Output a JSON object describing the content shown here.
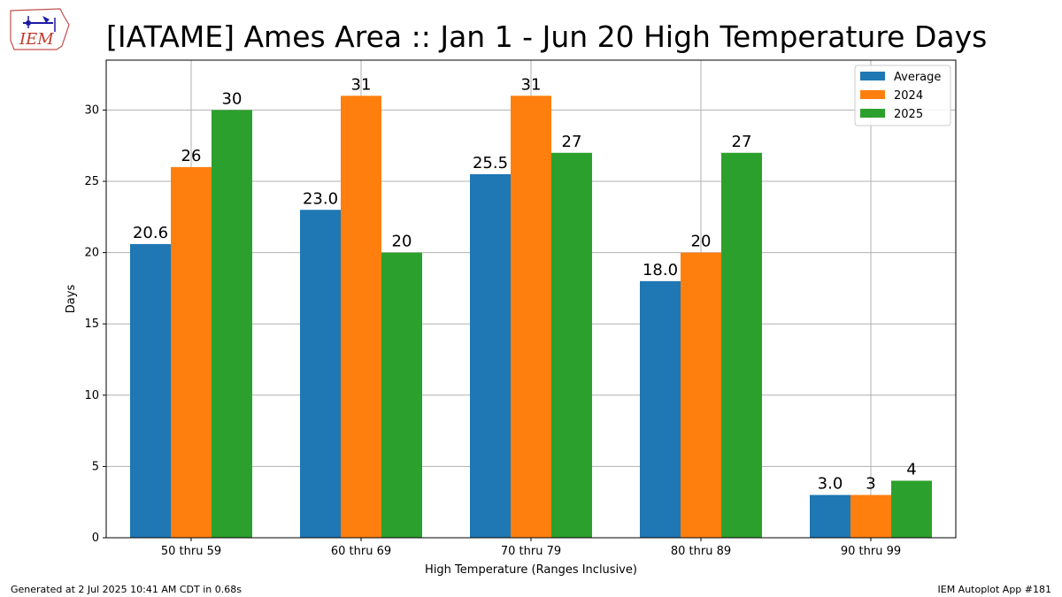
{
  "logo_text": "IEM",
  "title": "[IATAME] Ames Area :: Jan 1 - Jun 20 High Temperature Days",
  "footer": {
    "generated": "Generated at 2 Jul 2025 10:41 AM CDT in 0.68s",
    "app": "IEM Autoplot App #181"
  },
  "chart_data": {
    "type": "bar",
    "title": "[IATAME] Ames Area :: Jan 1 - Jun 20 High Temperature Days",
    "xlabel": "High Temperature (Ranges Inclusive)",
    "ylabel": "Days",
    "ylim": [
      0,
      33.5
    ],
    "yticks": [
      0,
      5,
      10,
      15,
      20,
      25,
      30
    ],
    "grid": true,
    "legend_position": "top-right",
    "categories": [
      "50 thru 59",
      "60 thru 69",
      "70 thru 79",
      "80 thru 89",
      "90 thru 99"
    ],
    "series": [
      {
        "name": "Average",
        "color": "#1f77b4",
        "values": [
          20.6,
          23.0,
          25.5,
          18.0,
          3.0
        ],
        "labels": [
          "20.6",
          "23.0",
          "25.5",
          "18.0",
          "3.0"
        ]
      },
      {
        "name": "2024",
        "color": "#ff7f0e",
        "values": [
          26,
          31,
          31,
          20,
          3
        ],
        "labels": [
          "26",
          "31",
          "31",
          "20",
          "3"
        ]
      },
      {
        "name": "2025",
        "color": "#2ca02c",
        "values": [
          30,
          20,
          27,
          27,
          4
        ],
        "labels": [
          "30",
          "20",
          "27",
          "27",
          "4"
        ]
      }
    ]
  }
}
